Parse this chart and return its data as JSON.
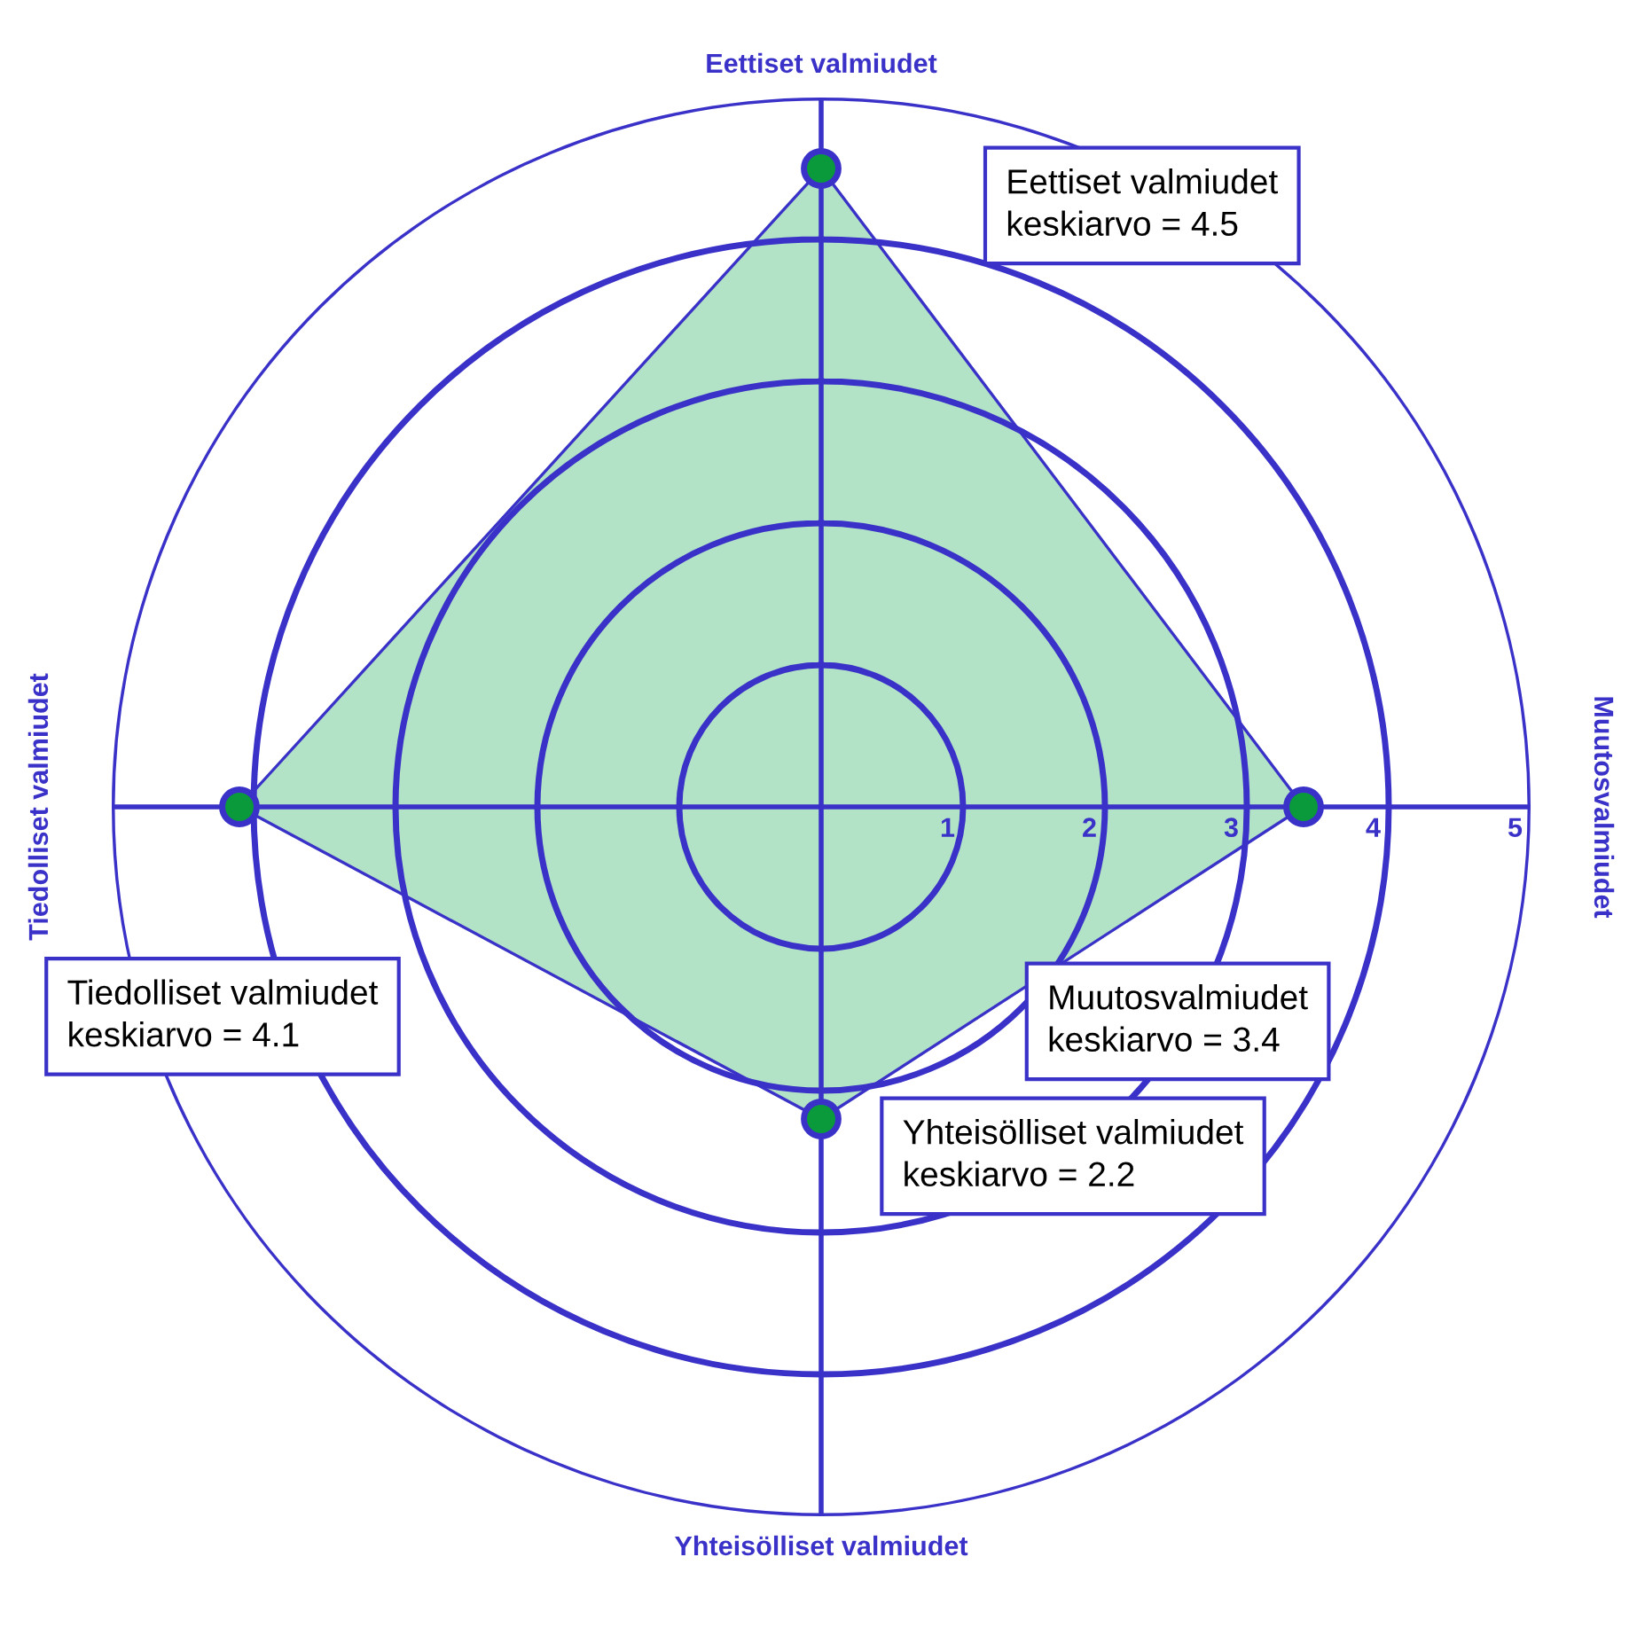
{
  "chart_data": {
    "type": "radar",
    "categories": [
      "Eettiset valmiudet",
      "Muutosvalmiudet",
      "Yhteisölliset valmiudet",
      "Tiedolliset valmiudet"
    ],
    "series": [
      {
        "color": "#b3e3c6",
        "values": [
          4.5,
          3.4,
          2.2,
          4.1
        ]
      }
    ],
    "ylim": [
      0,
      5
    ],
    "yticks": [
      1,
      2,
      3,
      4,
      5
    ],
    "grid": true,
    "marker": "circle",
    "annotations": [
      "Eettiset valmiudet\nkeskiarvo = 4.5",
      "Muutosvalmiudet\nkeskiarvo = 3.4",
      "Yhteisölliset valmiudet\nkeskiarvo = 2.2",
      "Tiedolliset valmiudet\nkeskiarvo = 4.1"
    ]
  }
}
